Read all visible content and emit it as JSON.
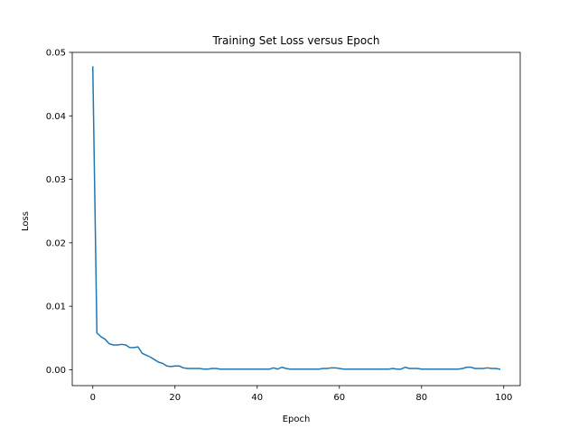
{
  "chart_data": {
    "type": "line",
    "title": "Training Set Loss versus Epoch",
    "xlabel": "Epoch",
    "ylabel": "Loss",
    "xlim": [
      -5,
      104
    ],
    "ylim": [
      -0.0025,
      0.05
    ],
    "xticks": [
      0,
      20,
      40,
      60,
      80,
      100
    ],
    "xtick_labels": [
      "0",
      "20",
      "40",
      "60",
      "80",
      "100"
    ],
    "yticks": [
      0.0,
      0.01,
      0.02,
      0.03,
      0.04,
      0.05
    ],
    "ytick_labels": [
      "0.00",
      "0.01",
      "0.02",
      "0.03",
      "0.04",
      "0.05"
    ],
    "grid": false,
    "series": [
      {
        "color": "#1f77b4",
        "x": [
          0,
          1,
          2,
          3,
          4,
          5,
          6,
          7,
          8,
          9,
          10,
          11,
          12,
          13,
          14,
          15,
          16,
          17,
          18,
          19,
          20,
          21,
          22,
          23,
          24,
          25,
          26,
          27,
          28,
          29,
          30,
          31,
          32,
          33,
          34,
          35,
          36,
          37,
          38,
          39,
          40,
          41,
          42,
          43,
          44,
          45,
          46,
          47,
          48,
          49,
          50,
          51,
          52,
          53,
          54,
          55,
          56,
          57,
          58,
          59,
          60,
          61,
          62,
          63,
          64,
          65,
          66,
          67,
          68,
          69,
          70,
          71,
          72,
          73,
          74,
          75,
          76,
          77,
          78,
          79,
          80,
          81,
          82,
          83,
          84,
          85,
          86,
          87,
          88,
          89,
          90,
          91,
          92,
          93,
          94,
          95,
          96,
          97,
          98,
          99
        ],
        "y": [
          0.0477,
          0.0058,
          0.0052,
          0.0048,
          0.0041,
          0.0039,
          0.0039,
          0.004,
          0.0039,
          0.0035,
          0.0035,
          0.0036,
          0.0026,
          0.0023,
          0.002,
          0.0016,
          0.0012,
          0.001,
          0.0006,
          0.0005,
          0.0006,
          0.0006,
          0.0003,
          0.0002,
          0.0002,
          0.0002,
          0.0002,
          0.0001,
          0.0001,
          0.0002,
          0.0002,
          0.0001,
          0.0001,
          0.0001,
          0.0001,
          0.0001,
          0.0001,
          0.0001,
          0.0001,
          0.0001,
          0.0001,
          0.0001,
          0.0001,
          0.0001,
          0.0003,
          0.0001,
          0.0004,
          0.0002,
          0.0001,
          0.0001,
          0.0001,
          0.0001,
          0.0001,
          0.0001,
          0.0001,
          0.0001,
          0.0002,
          0.0002,
          0.0003,
          0.0003,
          0.0002,
          0.0001,
          0.0001,
          0.0001,
          0.0001,
          0.0001,
          0.0001,
          0.0001,
          0.0001,
          0.0001,
          0.0001,
          0.0001,
          0.0001,
          0.0002,
          0.0001,
          0.0001,
          0.0004,
          0.0002,
          0.0002,
          0.0002,
          0.0001,
          0.0001,
          0.0001,
          0.0001,
          0.0001,
          0.0001,
          0.0001,
          0.0001,
          0.0001,
          0.0001,
          0.0002,
          0.0004,
          0.0004,
          0.0002,
          0.0002,
          0.0002,
          0.0003,
          0.0002,
          0.0002,
          0.0001
        ]
      }
    ]
  }
}
